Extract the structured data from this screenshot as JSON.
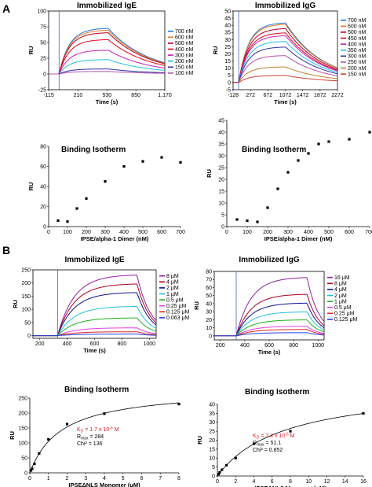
{
  "figure": {
    "panel_a_label": "A",
    "panel_b_label": "B"
  },
  "chart_data": [
    {
      "id": "A-sensorgram-IgE",
      "type": "line",
      "title": "Immobilized IgE",
      "xlabel": "Time (s)",
      "ylabel": "RU",
      "xlim": [
        -115,
        1170
      ],
      "ylim": [
        -25,
        100
      ],
      "x_ticks": [
        "-115",
        "210",
        "530",
        "850",
        "1.170"
      ],
      "y_ticks": [
        "-25",
        "0",
        "25",
        "50",
        "75",
        "100"
      ],
      "grid": false,
      "legend_position": "right",
      "injection_start": 0,
      "injection_end": 545,
      "series": [
        {
          "name": "700 nM",
          "color": "#1f77d4",
          "plateau": 73
        },
        {
          "name": "600 nM",
          "color": "#e87722",
          "plateau": 70
        },
        {
          "name": "500 nM",
          "color": "#b0001e",
          "plateau": 66
        },
        {
          "name": "400 nM",
          "color": "#e8001e",
          "plateau": 55
        },
        {
          "name": "300 nM",
          "color": "#c020c0",
          "plateau": 38
        },
        {
          "name": "200 nM",
          "color": "#22c0e0",
          "plateau": 23
        },
        {
          "name": "150 nM",
          "color": "#3030a0",
          "plateau": 8
        },
        {
          "name": "100 nM",
          "color": "#b050b0",
          "plateau": 4
        }
      ]
    },
    {
      "id": "A-sensorgram-IgG",
      "type": "line",
      "title": "Immobilized IgG",
      "xlabel": "Time (s)",
      "ylabel": "RU",
      "xlim": [
        -128,
        2272
      ],
      "ylim": [
        -5,
        50
      ],
      "x_ticks": [
        "-128",
        "272",
        "672",
        "1072",
        "1472",
        "1872",
        "2272"
      ],
      "y_ticks": [
        "-5",
        "0",
        "5",
        "10",
        "15",
        "20",
        "25",
        "30",
        "35",
        "40",
        "45",
        "50"
      ],
      "grid": false,
      "legend_position": "right",
      "injection_start": 0,
      "injection_end": 1080,
      "series": [
        {
          "name": "700 nM",
          "color": "#1f77d4",
          "plateau": 42
        },
        {
          "name": "600 nM",
          "color": "#e87722",
          "plateau": 41
        },
        {
          "name": "500 nM",
          "color": "#b0001e",
          "plateau": 38
        },
        {
          "name": "450 nM",
          "color": "#e8001e",
          "plateau": 35
        },
        {
          "name": "400 nM",
          "color": "#c020c0",
          "plateau": 33
        },
        {
          "name": "350 nM",
          "color": "#22c0e0",
          "plateau": 29
        },
        {
          "name": "300 nM",
          "color": "#3030a0",
          "plateau": 25
        },
        {
          "name": "250 nM",
          "color": "#b050b0",
          "plateau": 19
        },
        {
          "name": "200 nM",
          "color": "#c08030",
          "plateau": 11
        },
        {
          "name": "150 nM",
          "color": "#d04030",
          "plateau": 5
        }
      ]
    },
    {
      "id": "A-isotherm-IgE",
      "type": "scatter",
      "title": "Binding Isotherm",
      "xlabel": "IPSE/alpha-1 Dimer (nM)",
      "ylabel": "RU",
      "xlim": [
        0,
        700
      ],
      "ylim": [
        0,
        80
      ],
      "x_ticks": [
        "0",
        "100",
        "200",
        "300",
        "400",
        "500",
        "600",
        "700"
      ],
      "y_ticks": [
        "0",
        "20",
        "40",
        "60",
        "80"
      ],
      "points": [
        {
          "x": 50,
          "y": 6
        },
        {
          "x": 100,
          "y": 5
        },
        {
          "x": 150,
          "y": 18
        },
        {
          "x": 200,
          "y": 28
        },
        {
          "x": 300,
          "y": 45
        },
        {
          "x": 400,
          "y": 60
        },
        {
          "x": 500,
          "y": 65
        },
        {
          "x": 600,
          "y": 69
        },
        {
          "x": 700,
          "y": 64
        }
      ]
    },
    {
      "id": "A-isotherm-IgG",
      "type": "scatter",
      "title": "Binding Isotherm",
      "xlabel": "IPSE/alpha-1 Dimer (nM)",
      "ylabel": "RU",
      "xlim": [
        0,
        700
      ],
      "ylim": [
        0,
        45
      ],
      "x_ticks": [
        "0",
        "100",
        "200",
        "300",
        "400",
        "500",
        "600",
        "700"
      ],
      "y_ticks": [
        "0",
        "5",
        "10",
        "15",
        "20",
        "25",
        "30",
        "35",
        "40",
        "45"
      ],
      "points": [
        {
          "x": 50,
          "y": 3
        },
        {
          "x": 100,
          "y": 2.5
        },
        {
          "x": 150,
          "y": 2
        },
        {
          "x": 200,
          "y": 8
        },
        {
          "x": 250,
          "y": 16
        },
        {
          "x": 300,
          "y": 23
        },
        {
          "x": 350,
          "y": 28
        },
        {
          "x": 400,
          "y": 31
        },
        {
          "x": 450,
          "y": 35
        },
        {
          "x": 500,
          "y": 36
        },
        {
          "x": 600,
          "y": 37
        },
        {
          "x": 700,
          "y": 40
        }
      ]
    },
    {
      "id": "B-sensorgram-IgE",
      "type": "line",
      "title": "Immobilized IgE",
      "xlabel": "Time (s)",
      "ylabel": "RU",
      "xlim": [
        150,
        1050
      ],
      "ylim": [
        -10,
        250
      ],
      "x_ticks": [
        "200",
        "400",
        "600",
        "800",
        "1000"
      ],
      "y_ticks": [
        "0",
        "50",
        "100",
        "150",
        "200",
        "250"
      ],
      "grid": false,
      "legend_position": "right",
      "injection_start": 330,
      "injection_end": 910,
      "series": [
        {
          "name": "8 μM",
          "color": "#9020a0",
          "plateau": 232
        },
        {
          "name": "4 μM",
          "color": "#b0001e",
          "plateau": 198
        },
        {
          "name": "2 μM",
          "color": "#101090",
          "plateau": 165
        },
        {
          "name": "1 μM",
          "color": "#22c0e0",
          "plateau": 112
        },
        {
          "name": "0.5 μM",
          "color": "#20b020",
          "plateau": 68
        },
        {
          "name": "0.25 μM",
          "color": "#e040e0",
          "plateau": 30
        },
        {
          "name": "0.125 μM",
          "color": "#e02020",
          "plateau": 15
        },
        {
          "name": "0.063 μM",
          "color": "#2040e0",
          "plateau": 6
        }
      ]
    },
    {
      "id": "B-sensorgram-IgG",
      "type": "line",
      "title": "Immobilized IgG",
      "xlabel": "Time (s)",
      "ylabel": "RU",
      "xlim": [
        150,
        1050
      ],
      "ylim": [
        -5,
        80
      ],
      "x_ticks": [
        "200",
        "400",
        "600",
        "800",
        "1000"
      ],
      "y_ticks": [
        "0",
        "10",
        "20",
        "30",
        "40",
        "50",
        "60",
        "70",
        "80"
      ],
      "grid": false,
      "legend_position": "right",
      "injection_start": 330,
      "injection_end": 910,
      "series": [
        {
          "name": "16 μM",
          "color": "#9020a0",
          "plateau": 73
        },
        {
          "name": "8 μM",
          "color": "#b0001e",
          "plateau": 52
        },
        {
          "name": "4 μM",
          "color": "#101090",
          "plateau": 41
        },
        {
          "name": "2 μM",
          "color": "#22c0e0",
          "plateau": 30
        },
        {
          "name": "1 μM",
          "color": "#20b020",
          "plateau": 20
        },
        {
          "name": "0.5 μM",
          "color": "#e040e0",
          "plateau": 12
        },
        {
          "name": "0.25 μM",
          "color": "#e02020",
          "plateau": 8
        },
        {
          "name": "0.125 μM",
          "color": "#2040e0",
          "plateau": 4
        }
      ]
    },
    {
      "id": "B-isotherm-IgE",
      "type": "scatter",
      "title": "Binding Isotherm",
      "xlabel": "IPSEΔNLS Monomer (μM)",
      "ylabel": "RU",
      "xlim": [
        0,
        8
      ],
      "ylim": [
        0,
        250
      ],
      "x_ticks": [
        "0",
        "1",
        "2",
        "3",
        "4",
        "5",
        "6",
        "7",
        "8"
      ],
      "y_ticks": [
        "0",
        "50",
        "100",
        "150",
        "200",
        "250"
      ],
      "fit": {
        "Rmax": 284,
        "KD_uM": 1.7
      },
      "stats": {
        "kd": "K",
        "kd_sub": "D",
        "kd_eq": " = 1.7 x 10",
        "kd_exp": "-6",
        "kd_unit": " M",
        "rmax": "R",
        "rmax_sub": "max",
        "rmax_eq": " = 284",
        "chi2": "Chi² = 136"
      },
      "points": [
        {
          "x": 0.063,
          "y": 8
        },
        {
          "x": 0.125,
          "y": 14
        },
        {
          "x": 0.25,
          "y": 30
        },
        {
          "x": 0.5,
          "y": 65
        },
        {
          "x": 1,
          "y": 112
        },
        {
          "x": 2,
          "y": 163
        },
        {
          "x": 4,
          "y": 198
        },
        {
          "x": 8,
          "y": 230
        }
      ]
    },
    {
      "id": "B-isotherm-IgG",
      "type": "scatter",
      "title": "Binding Isotherm",
      "xlabel": "IPSEΔNLS Monomer (μM)",
      "ylabel": "RU",
      "xlim": [
        0,
        16
      ],
      "ylim": [
        0,
        40
      ],
      "x_ticks": [
        "0",
        "2",
        "4",
        "6",
        "8",
        "10",
        "12",
        "14",
        "16"
      ],
      "y_ticks": [
        "0",
        "5",
        "10",
        "15",
        "20",
        "25",
        "30",
        "35",
        "40"
      ],
      "fit": {
        "Rmax": 51.1,
        "KD_uM": 7.4
      },
      "stats": {
        "kd": "K",
        "kd_sub": "D",
        "kd_eq": " = 7.4 x 10",
        "kd_exp": "-6",
        "kd_unit": " M",
        "rmax": "R",
        "rmax_sub": "max",
        "rmax_eq": " = 51.1",
        "chi2": "Chi² = 0.852"
      },
      "points": [
        {
          "x": 0.125,
          "y": 1
        },
        {
          "x": 0.25,
          "y": 2
        },
        {
          "x": 0.5,
          "y": 3.5
        },
        {
          "x": 1,
          "y": 6
        },
        {
          "x": 2,
          "y": 10
        },
        {
          "x": 4,
          "y": 18
        },
        {
          "x": 8,
          "y": 25
        },
        {
          "x": 16,
          "y": 35
        }
      ]
    }
  ]
}
